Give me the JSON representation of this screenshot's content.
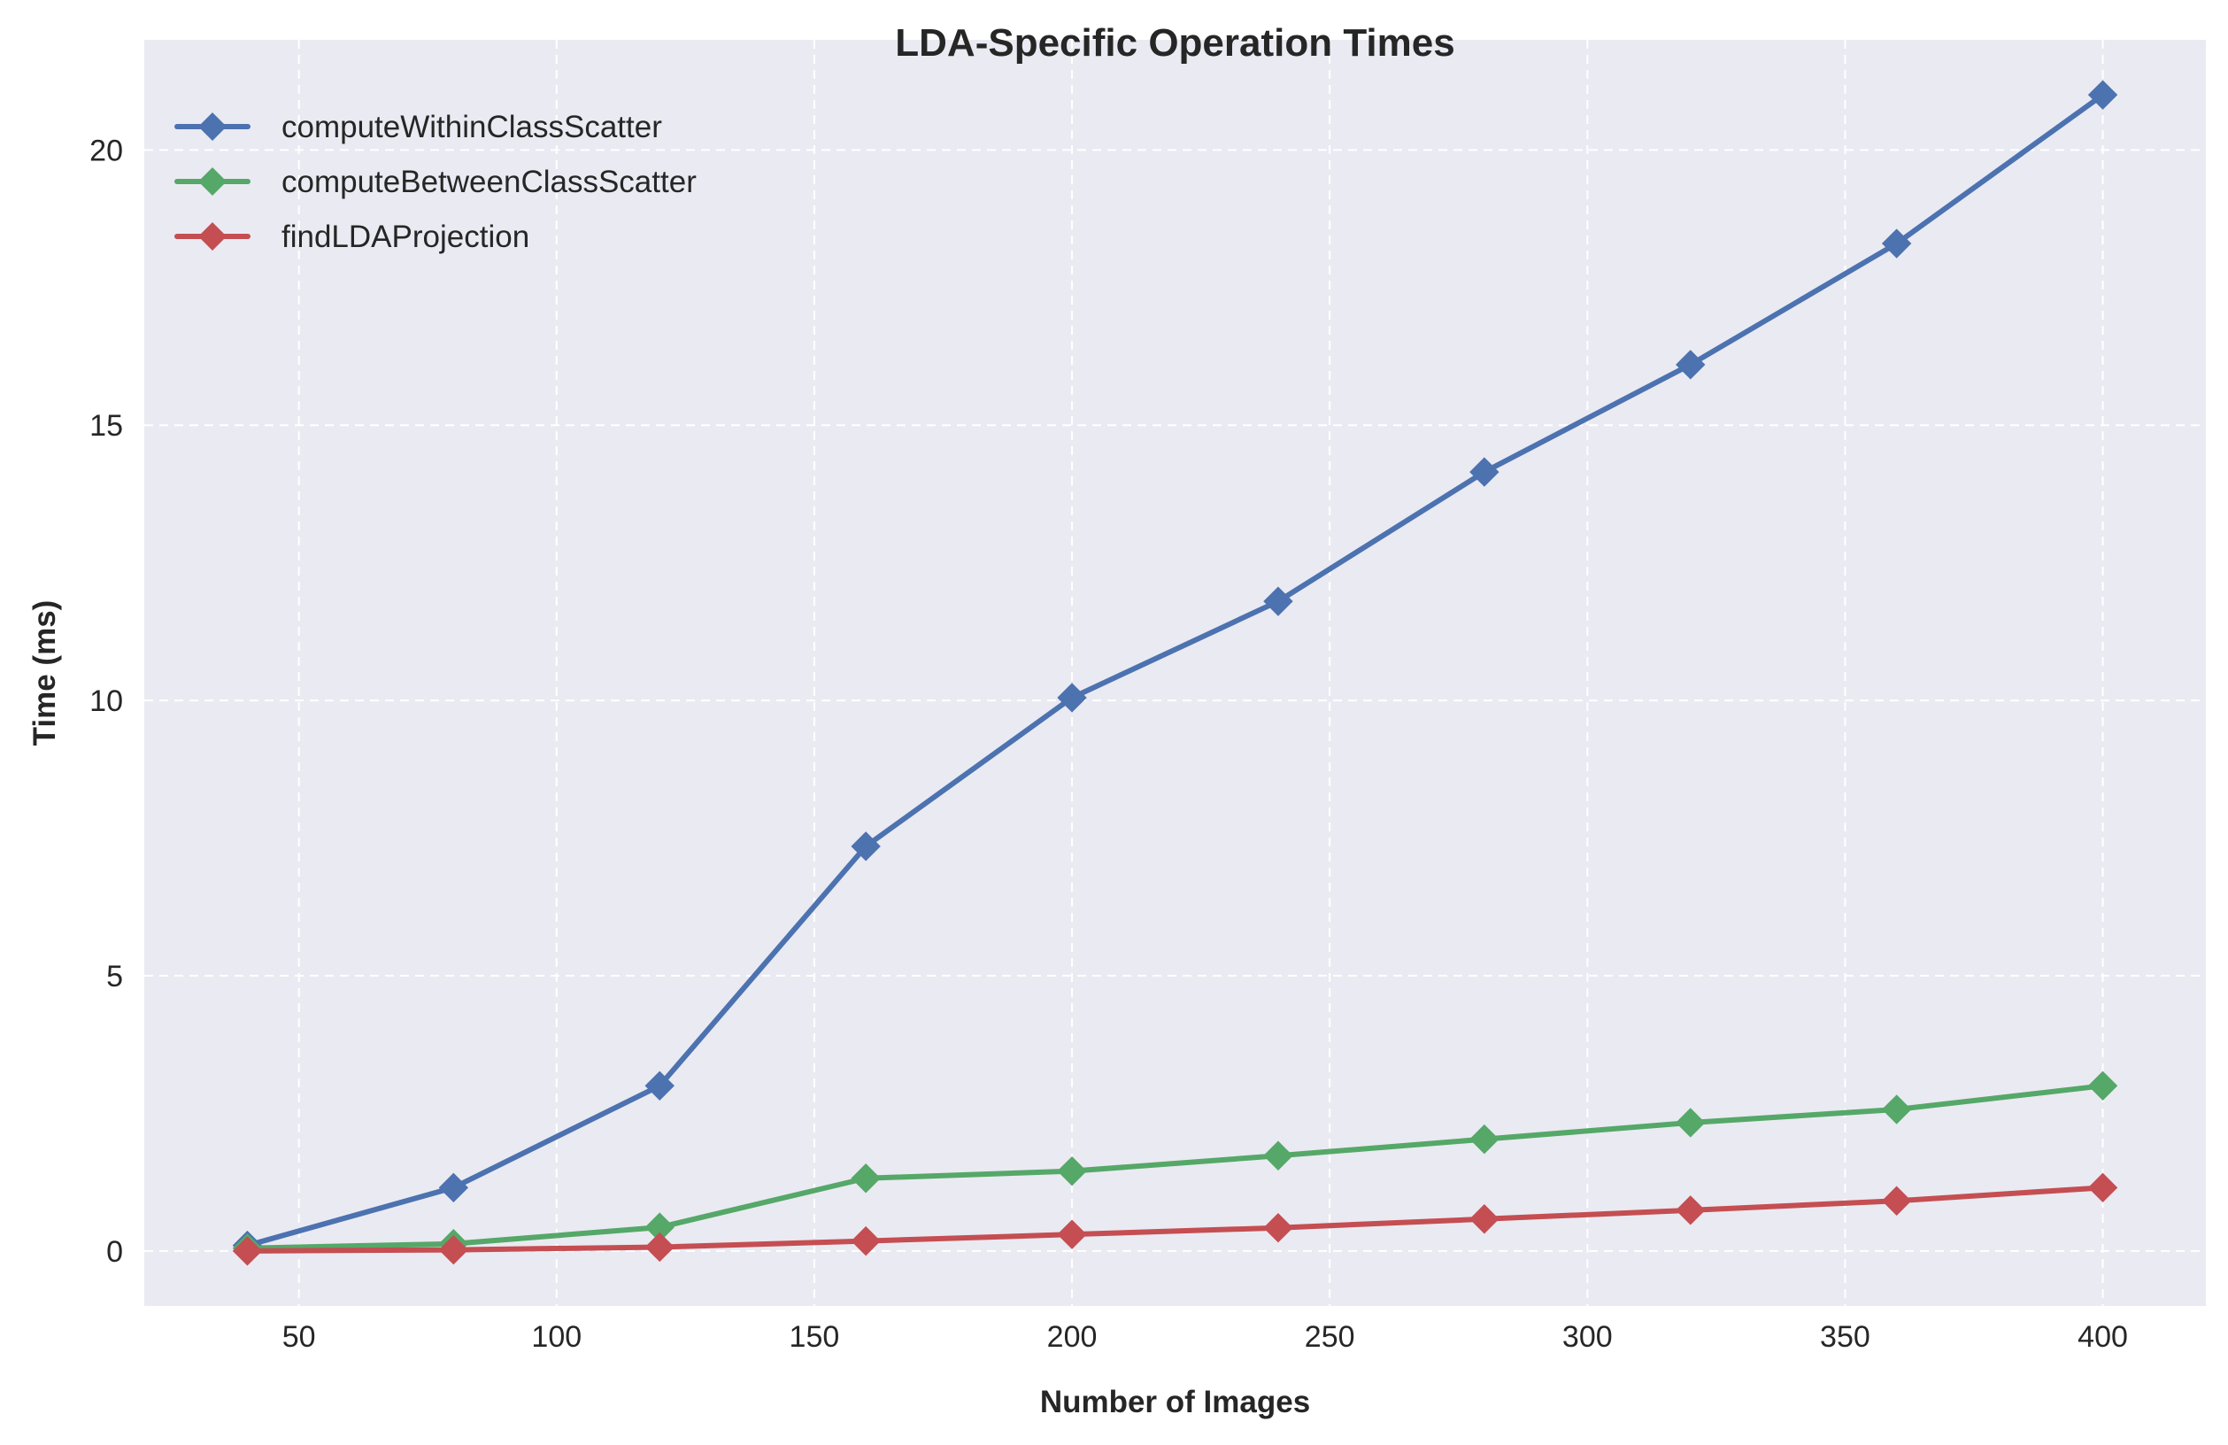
{
  "chart_data": {
    "type": "line",
    "title": "LDA-Specific Operation Times",
    "xlabel": "Number of Images",
    "ylabel": "Time (ms)",
    "xlim": [
      20,
      420
    ],
    "ylim": [
      -1,
      22
    ],
    "xticks": [
      50,
      100,
      150,
      200,
      250,
      300,
      350,
      400
    ],
    "xtick_labels": [
      "50",
      "100",
      "150",
      "200",
      "250",
      "300",
      "350",
      "400"
    ],
    "yticks": [
      0,
      5,
      10,
      15,
      20
    ],
    "ytick_labels": [
      "0",
      "5",
      "10",
      "15",
      "20"
    ],
    "grid": true,
    "legend_position": "top-left",
    "background_color": "#eaeaf2",
    "x": [
      40,
      80,
      120,
      160,
      200,
      240,
      280,
      320,
      360,
      400
    ],
    "series": [
      {
        "name": "computeWithinClassScatter",
        "color": "#4c72b0",
        "marker": "diamond",
        "values": [
          0.1,
          1.15,
          3.0,
          7.35,
          10.05,
          11.8,
          14.15,
          16.1,
          18.3,
          21.0
        ]
      },
      {
        "name": "computeBetweenClassScatter",
        "color": "#55a868",
        "marker": "diamond",
        "values": [
          0.05,
          0.13,
          0.43,
          1.32,
          1.45,
          1.73,
          2.03,
          2.33,
          2.57,
          3.0
        ]
      },
      {
        "name": "findLDAProjection",
        "color": "#c44e52",
        "marker": "diamond",
        "values": [
          0.0,
          0.02,
          0.07,
          0.18,
          0.3,
          0.42,
          0.58,
          0.74,
          0.91,
          1.15
        ]
      }
    ]
  }
}
